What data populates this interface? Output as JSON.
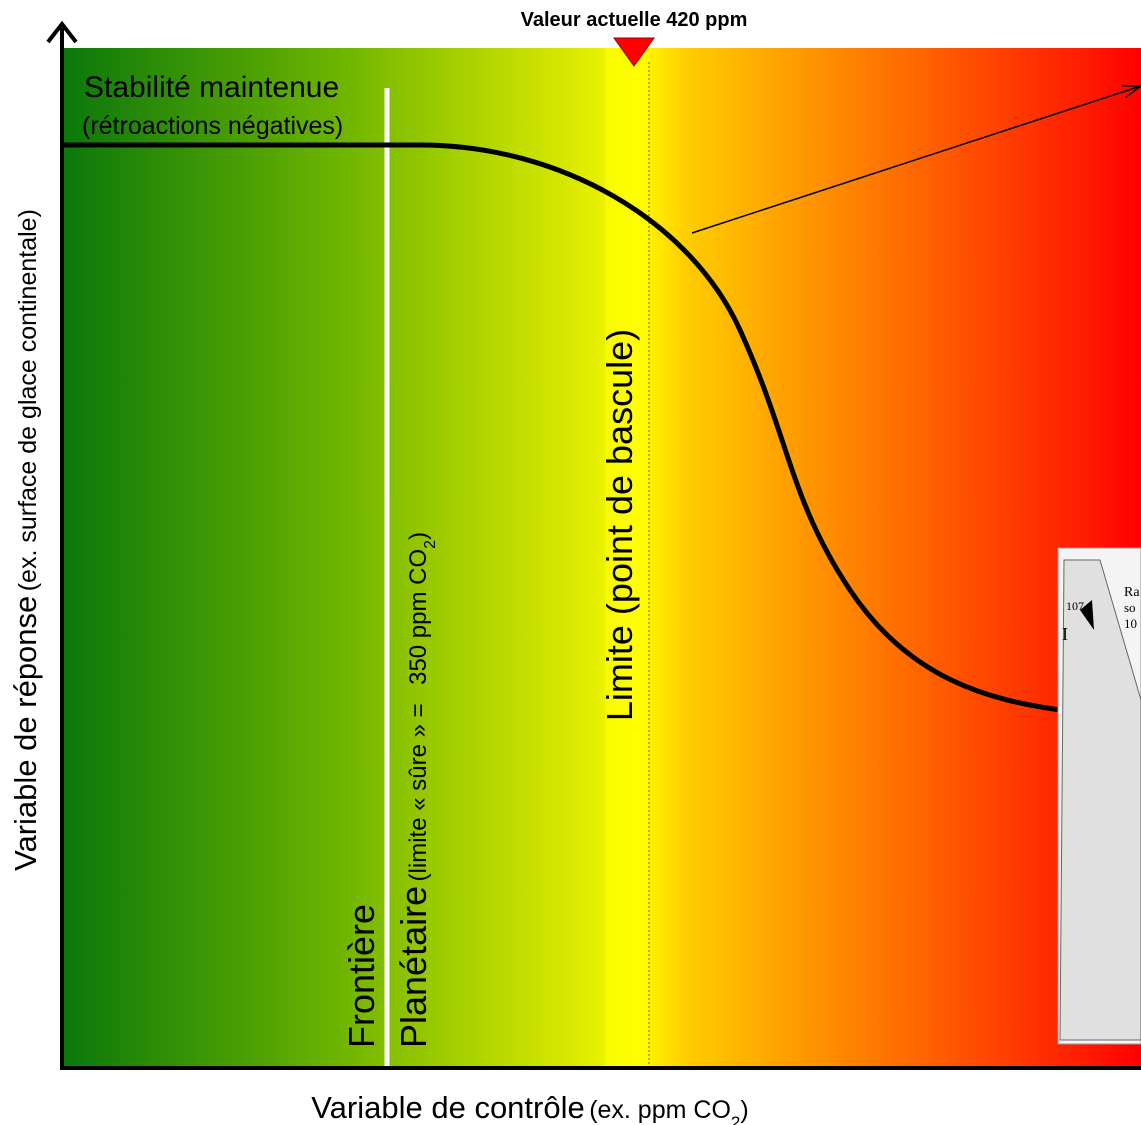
{
  "header": {
    "current_value": "Valeur actuelle 420 ppm"
  },
  "stability": {
    "title": "Stabilité maintenue",
    "subtitle": "(rétroactions négatives)"
  },
  "y_axis": {
    "label": "Variable de réponse",
    "example": "(ex. surface de glace continentale)"
  },
  "x_axis": {
    "label": "Variable de contrôle",
    "example": "(ex. ppm CO",
    "subscript": "2",
    "close": ")"
  },
  "boundary": {
    "line1": "Frontière",
    "line2": "Planétaire",
    "note": "(limite « sûre » =",
    "value": "350 ppm CO",
    "subscript": "2",
    "close": ")"
  },
  "tipping_point": "Limite (point de bascule)",
  "inset": {
    "fragments": [
      "Ra",
      "so",
      "10",
      "107",
      "I"
    ]
  }
}
